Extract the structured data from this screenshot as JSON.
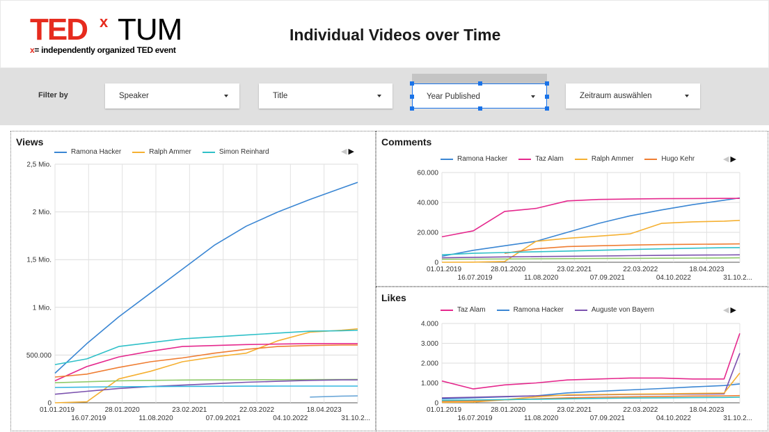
{
  "header": {
    "logo_ted": "TED",
    "logo_x": "x",
    "logo_tum": "TUM",
    "logo_tagline_x": "x",
    "logo_tagline": "= independently organized TED event",
    "title": "Individual Videos over Time"
  },
  "filters": {
    "label": "Filter by",
    "speaker": "Speaker",
    "title": "Title",
    "year": "Year Published",
    "date": "Zeitraum auswählen"
  },
  "chart_data": [
    {
      "type": "line",
      "title": "Views",
      "x_ticks_row1": [
        "01.01.2019",
        "28.01.2020",
        "23.02.2021",
        "22.03.2022",
        "18.04.2023"
      ],
      "x_ticks_row2": [
        "16.07.2019",
        "11.08.2020",
        "07.09.2021",
        "04.10.2022",
        "31.10.2..."
      ],
      "y_ticks": [
        "0",
        "500.000",
        "1 Mio.",
        "1,5 Mio.",
        "2 Mio.",
        "2,5 Mio."
      ],
      "ylim": [
        0,
        2500000
      ],
      "x": [
        "2019-01",
        "2019-07",
        "2020-01",
        "2020-07",
        "2021-01",
        "2021-07",
        "2022-01",
        "2022-07",
        "2023-01",
        "2023-07",
        "2023-10"
      ],
      "legend": [
        "Ramona Hacker",
        "Ralph Ammer",
        "Simon Reinhard"
      ],
      "series": [
        {
          "name": "Ramona Hacker",
          "color": "#3a86d3",
          "values": [
            310000,
            620000,
            900000,
            1150000,
            1400000,
            1650000,
            1850000,
            2000000,
            2130000,
            2250000,
            2310000
          ]
        },
        {
          "name": "Ralph Ammer",
          "color": "#f5b031",
          "values": [
            0,
            10000,
            250000,
            330000,
            430000,
            480000,
            520000,
            650000,
            740000,
            760000,
            775000
          ]
        },
        {
          "name": "Simon Reinhard",
          "color": "#2fc0c8",
          "values": [
            400000,
            460000,
            590000,
            630000,
            670000,
            690000,
            710000,
            730000,
            750000,
            755000,
            760000
          ]
        },
        {
          "color": "#e5288d",
          "values": [
            230000,
            380000,
            480000,
            540000,
            590000,
            600000,
            610000,
            615000,
            620000,
            620000,
            620000
          ]
        },
        {
          "color": "#ef7d32",
          "values": [
            270000,
            300000,
            370000,
            430000,
            470000,
            520000,
            560000,
            590000,
            600000,
            605000,
            605000
          ]
        },
        {
          "color": "#8fca6a",
          "values": [
            210000,
            220000,
            230000,
            235000,
            238000,
            240000,
            241000,
            242000,
            243000,
            244000,
            245000
          ]
        },
        {
          "color": "#7b52ae",
          "values": [
            90000,
            120000,
            150000,
            170000,
            185000,
            200000,
            215000,
            225000,
            235000,
            240000,
            240000
          ]
        },
        {
          "color": "#33b6e0",
          "values": [
            160000,
            165000,
            168000,
            170000,
            172000,
            173000,
            174000,
            175000,
            175000,
            175000,
            175000
          ]
        },
        {
          "color": "#6ba7d8",
          "values": [
            null,
            null,
            null,
            null,
            null,
            null,
            null,
            null,
            60000,
            70000,
            72000
          ]
        }
      ]
    },
    {
      "type": "line",
      "title": "Comments",
      "x_ticks_row1": [
        "01.01.2019",
        "28.01.2020",
        "23.02.2021",
        "22.03.2022",
        "18.04.2023"
      ],
      "x_ticks_row2": [
        "16.07.2019",
        "11.08.2020",
        "07.09.2021",
        "04.10.2022",
        "31.10.2..."
      ],
      "y_ticks": [
        "0",
        "20.000",
        "40.000",
        "60.000"
      ],
      "ylim": [
        0,
        60000
      ],
      "x": [
        "2019-01",
        "2019-07",
        "2020-01",
        "2020-07",
        "2021-01",
        "2021-07",
        "2022-01",
        "2022-07",
        "2023-01",
        "2023-07",
        "2023-10"
      ],
      "legend": [
        "Ramona Hacker",
        "Taz Alam",
        "Ralph Ammer",
        "Hugo Kehr"
      ],
      "series": [
        {
          "name": "Ramona Hacker",
          "color": "#3a86d3",
          "values": [
            4000,
            8000,
            11000,
            14000,
            20000,
            26000,
            31000,
            35000,
            38500,
            41500,
            43000
          ]
        },
        {
          "name": "Taz Alam",
          "color": "#e5288d",
          "values": [
            17000,
            21000,
            34000,
            36000,
            41000,
            42000,
            42300,
            42500,
            42600,
            42700,
            42700
          ]
        },
        {
          "name": "Ralph Ammer",
          "color": "#f5b031",
          "values": [
            0,
            100,
            500,
            14000,
            16000,
            17500,
            19000,
            26000,
            27000,
            27500,
            28000
          ]
        },
        {
          "name": "Hugo Kehr",
          "color": "#ef7d32",
          "values": [
            null,
            null,
            6000,
            9000,
            10500,
            11000,
            11500,
            11800,
            12000,
            12200,
            12300
          ]
        },
        {
          "color": "#2fc0c8",
          "values": [
            5000,
            6000,
            6500,
            7000,
            7500,
            8000,
            8500,
            9000,
            9400,
            9700,
            9800
          ]
        },
        {
          "color": "#7b52ae",
          "values": [
            3000,
            3300,
            3600,
            3800,
            4000,
            4200,
            4400,
            4600,
            4800,
            4900,
            5000
          ]
        },
        {
          "color": "#8fca6a",
          "values": [
            2000,
            2100,
            2200,
            2300,
            2400,
            2500,
            2600,
            2700,
            2800,
            2900,
            3000
          ]
        }
      ]
    },
    {
      "type": "line",
      "title": "Likes",
      "x_ticks_row1": [
        "01.01.2019",
        "28.01.2020",
        "23.02.2021",
        "22.03.2022",
        "18.04.2023"
      ],
      "x_ticks_row2": [
        "16.07.2019",
        "11.08.2020",
        "07.09.2021",
        "04.10.2022",
        "31.10.2..."
      ],
      "y_ticks": [
        "0",
        "1.000",
        "2.000",
        "3.000",
        "4.000"
      ],
      "ylim": [
        0,
        4000
      ],
      "x": [
        "2019-01",
        "2019-07",
        "2020-01",
        "2020-07",
        "2021-01",
        "2021-07",
        "2022-01",
        "2022-07",
        "2023-01",
        "2023-07",
        "2023-10"
      ],
      "legend": [
        "Taz Alam",
        "Ramona Hacker",
        "Auguste von Bayern"
      ],
      "series": [
        {
          "name": "Taz Alam",
          "color": "#e5288d",
          "values": [
            1100,
            700,
            900,
            1000,
            1150,
            1200,
            1250,
            1250,
            1200,
            1200,
            3500
          ]
        },
        {
          "name": "Ramona Hacker",
          "color": "#3a86d3",
          "values": [
            200,
            250,
            300,
            350,
            500,
            580,
            650,
            720,
            800,
            870,
            950
          ]
        },
        {
          "name": "Auguste von Bayern",
          "color": "#7b52ae",
          "values": [
            250,
            280,
            320,
            350,
            380,
            400,
            420,
            430,
            440,
            450,
            2500
          ]
        },
        {
          "color": "#f5b031",
          "values": [
            20,
            40,
            150,
            300,
            400,
            420,
            440,
            450,
            470,
            490,
            1500
          ]
        },
        {
          "color": "#ef7d32",
          "values": [
            80,
            100,
            150,
            200,
            250,
            280,
            300,
            320,
            340,
            350,
            360
          ]
        },
        {
          "color": "#2fc0c8",
          "values": [
            120,
            140,
            160,
            180,
            200,
            220,
            240,
            250,
            260,
            270,
            280
          ]
        }
      ]
    }
  ]
}
